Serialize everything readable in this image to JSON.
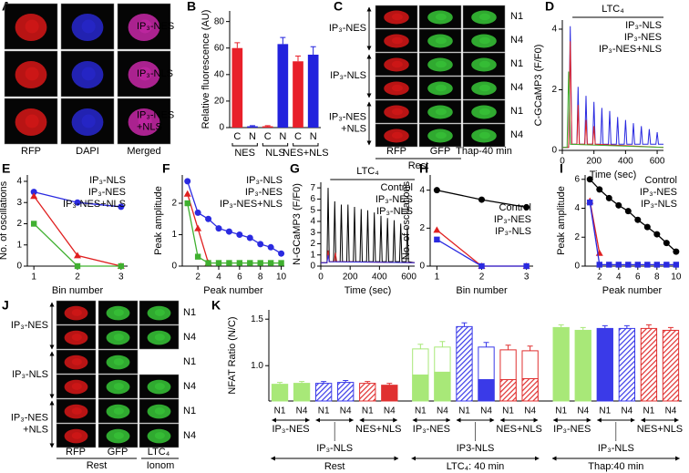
{
  "panel_labels": [
    "A",
    "B",
    "C",
    "D",
    "E",
    "F",
    "G",
    "H",
    "I",
    "J",
    "K"
  ],
  "image_panels": {
    "A": {
      "rows": [
        [
          "IP₃-NES"
        ],
        [
          "IP₃-NLS"
        ],
        [
          "IP₃-NES",
          "+NLS"
        ]
      ],
      "columns": [
        "RFP",
        "DAPI",
        "Merged"
      ]
    },
    "C": {
      "rows": [
        [
          "IP₃-NES"
        ],
        [
          "IP₃-NLS"
        ],
        [
          "IP₃-NES",
          "+NLS"
        ]
      ],
      "columns": [
        "RFP",
        "GFP",
        "Thap-40 min"
      ],
      "row_tags": [
        "N1",
        "N4",
        "N1",
        "N4",
        "N1",
        "N4"
      ],
      "footer": "Rest"
    },
    "J": {
      "rows": [
        [
          "IP₃-NES"
        ],
        [
          "IP₃-NLS"
        ],
        [
          "IP₃-NES",
          "+NLS"
        ]
      ],
      "columns": [
        "RFP",
        "GFP",
        "LTC₄"
      ],
      "row_tags": [
        "N1",
        "N4",
        "N1",
        "N4",
        "N1",
        "N4"
      ],
      "footer": "Rest",
      "footer2": "Ionom"
    }
  },
  "chart_data": [
    {
      "type": "bar",
      "ylabel": "Relative fluorescence (AU)",
      "categories": [
        "C",
        "N",
        "C",
        "N",
        "C",
        "N"
      ],
      "groups": [
        "NES",
        "NLS",
        "NES+NLS"
      ],
      "values": [
        60,
        1,
        1,
        63,
        50,
        55
      ],
      "errors": [
        4,
        0.5,
        0.5,
        5,
        4,
        6
      ],
      "colors": [
        "#e8202a",
        "#2222dd",
        "#e8202a",
        "#2222dd",
        "#e8202a",
        "#2222dd"
      ],
      "ylim": [
        0,
        88
      ],
      "yticks": [
        0,
        20,
        40,
        60,
        80
      ]
    },
    {
      "type": "line",
      "title": "LTC₄",
      "ylabel": "C-GCaMP3 (F/F0)",
      "xlabel": "Time (sec)",
      "xlim": [
        0,
        640
      ],
      "ylim": [
        0,
        4.3
      ],
      "xticks": [
        0,
        200,
        400,
        600
      ],
      "yticks": [
        0,
        2,
        4
      ],
      "legend_position": "upper right",
      "series": [
        {
          "name": "IP₃-NLS",
          "color": "#2a2ae0",
          "x": [
            0,
            40,
            50,
            60,
            92,
            100,
            108,
            142,
            150,
            158,
            192,
            200,
            208,
            242,
            250,
            258,
            292,
            300,
            308,
            342,
            350,
            358,
            392,
            400,
            408,
            442,
            450,
            458,
            492,
            500,
            508,
            542,
            550,
            558,
            592,
            600,
            608,
            640
          ],
          "values": [
            0.1,
            0.1,
            4.1,
            0.2,
            0.2,
            2.1,
            0.2,
            0.2,
            1.8,
            0.2,
            0.2,
            1.6,
            0.2,
            0.2,
            1.4,
            0.2,
            0.2,
            1.3,
            0.2,
            0.2,
            1.1,
            0.2,
            0.2,
            1.0,
            0.2,
            0.2,
            0.9,
            0.2,
            0.2,
            0.8,
            0.2,
            0.2,
            0.7,
            0.2,
            0.2,
            0.6,
            0.2,
            0.2
          ]
        },
        {
          "name": "IP₃-NES",
          "color": "#e02020",
          "x": [
            0,
            40,
            50,
            60,
            92,
            100,
            108,
            142,
            150,
            158,
            192,
            200,
            208,
            640
          ],
          "values": [
            0.1,
            0.1,
            3.6,
            0.2,
            0.2,
            1.5,
            0.2,
            0.2,
            1.0,
            0.2,
            0.2,
            0.8,
            0.2,
            0.1
          ]
        },
        {
          "name": "IP₃-NES+NLS",
          "color": "#40b030",
          "x": [
            0,
            30,
            40,
            50,
            640
          ],
          "values": [
            0.1,
            0.1,
            2.6,
            0.2,
            0.1
          ]
        }
      ]
    },
    {
      "type": "line",
      "markers": true,
      "xlabel": "Bin number",
      "ylabel": "No. of oscillations",
      "x": [
        1,
        2,
        3
      ],
      "xlim": [
        0.85,
        3.15
      ],
      "ylim": [
        0,
        4.3
      ],
      "xticks": [
        1,
        2,
        3
      ],
      "yticks": [
        0,
        1,
        2,
        3,
        4
      ],
      "legend_position": "upper right",
      "series": [
        {
          "name": "IP₃-NLS",
          "color": "#2a2ae0",
          "marker": "circle",
          "values": [
            3.5,
            3.0,
            2.8
          ]
        },
        {
          "name": "IP₃-NES",
          "color": "#e02020",
          "marker": "triangle",
          "values": [
            3.3,
            0.5,
            0
          ]
        },
        {
          "name": "IP₃-NES+NLS",
          "color": "#40b030",
          "marker": "square",
          "values": [
            2,
            0,
            0
          ]
        }
      ]
    },
    {
      "type": "line",
      "markers": true,
      "xlabel": "Peak number",
      "ylabel": "Peak amplitude",
      "x": [
        1,
        2,
        3,
        4,
        5,
        6,
        7,
        8,
        9,
        10
      ],
      "xlim": [
        0.5,
        10.3
      ],
      "ylim": [
        0,
        2.9
      ],
      "xticks": [
        2,
        4,
        6,
        8,
        10
      ],
      "yticks": [
        0,
        1,
        2
      ],
      "legend_position": "upper right",
      "series": [
        {
          "name": "IP₃-NLS",
          "color": "#2a2ae0",
          "marker": "circle",
          "values": [
            2.7,
            1.7,
            1.5,
            1.2,
            1.1,
            1.0,
            0.9,
            0.7,
            0.6,
            0.4
          ]
        },
        {
          "name": "IP₃-NES",
          "color": "#e02020",
          "marker": "triangle",
          "x": [
            1,
            2,
            3
          ],
          "values": [
            2.3,
            1.2,
            0.1
          ]
        },
        {
          "name": "IP₃-NES+NLS",
          "color": "#40b030",
          "marker": "square",
          "values": [
            2.0,
            0.3,
            0.1,
            0.1,
            0.1,
            0.1,
            0.1,
            0.1,
            0.1,
            0.1
          ]
        }
      ]
    },
    {
      "type": "line",
      "title": "LTC₄",
      "ylabel": "N-GCaMP3 (F/F0)",
      "xlabel": "Time (sec)",
      "xlim": [
        0,
        640
      ],
      "ylim": [
        0,
        7.5
      ],
      "xticks": [
        0,
        200,
        400,
        600
      ],
      "yticks": [
        0,
        1,
        2,
        3,
        4,
        5,
        6,
        7
      ],
      "legend_position": "upper right",
      "series": [
        {
          "name": "Control",
          "color": "#000000",
          "x": [
            0,
            42,
            50,
            58,
            87,
            95,
            103,
            132,
            140,
            148,
            177,
            185,
            193,
            222,
            230,
            238,
            267,
            275,
            283,
            312,
            320,
            328,
            357,
            365,
            373,
            402,
            410,
            418,
            447,
            455,
            463,
            492,
            500,
            508,
            537,
            545,
            553,
            582,
            590,
            598,
            640
          ],
          "values": [
            0.3,
            0.3,
            7.0,
            0.4,
            0.4,
            5.8,
            0.4,
            0.4,
            5.5,
            0.4,
            0.4,
            5.5,
            0.4,
            0.4,
            5.3,
            0.4,
            0.4,
            5.1,
            0.4,
            0.4,
            5.0,
            0.4,
            0.4,
            4.8,
            0.4,
            0.4,
            4.5,
            0.4,
            0.4,
            4.3,
            0.4,
            0.4,
            4.1,
            0.4,
            0.4,
            3.8,
            0.4,
            0.4,
            3.5,
            0.4,
            0.3
          ]
        },
        {
          "name": "IP₃-NES",
          "color": "#e02020",
          "x": [
            0,
            42,
            50,
            58,
            92,
            100,
            108,
            640
          ],
          "values": [
            0.3,
            0.3,
            1.4,
            0.4,
            0.4,
            1.2,
            0.4,
            0.3
          ]
        },
        {
          "name": "IP₃-NLS",
          "color": "#2a2ae0",
          "x": [
            0,
            42,
            50,
            58,
            640
          ],
          "values": [
            0.3,
            0.3,
            1.0,
            0.4,
            0.3
          ]
        }
      ]
    },
    {
      "type": "line",
      "markers": true,
      "xlabel": "Bin number",
      "ylabel": "No. of oscillations",
      "x": [
        1,
        2,
        3
      ],
      "xlim": [
        0.85,
        3.15
      ],
      "ylim": [
        0,
        4.8
      ],
      "xticks": [
        1,
        2,
        3
      ],
      "yticks": [
        0,
        2,
        4
      ],
      "legend_position": "center right",
      "series": [
        {
          "name": "Control",
          "color": "#000000",
          "marker": "circle",
          "values": [
            4.0,
            3.5,
            3.1
          ]
        },
        {
          "name": "IP₃-NES",
          "color": "#e02020",
          "marker": "triangle",
          "values": [
            1.9,
            0,
            0
          ]
        },
        {
          "name": "IP₃-NLS",
          "color": "#2a2ae0",
          "marker": "square",
          "values": [
            1.4,
            0,
            0
          ]
        }
      ]
    },
    {
      "type": "line",
      "markers": true,
      "xlabel": "Peak number",
      "ylabel": "Peak amplitude",
      "x": [
        1,
        2,
        3,
        4,
        5,
        6,
        7,
        8,
        9,
        10
      ],
      "xlim": [
        0.5,
        10.3
      ],
      "ylim": [
        0,
        6.3
      ],
      "xticks": [
        2,
        4,
        6,
        8,
        10
      ],
      "yticks": [
        0,
        2,
        4,
        6
      ],
      "legend_position": "upper right",
      "series": [
        {
          "name": "Control",
          "color": "#000000",
          "marker": "circle",
          "values": [
            6.0,
            5.3,
            4.7,
            4.2,
            3.8,
            3.2,
            2.7,
            2.2,
            1.6,
            1.0
          ]
        },
        {
          "name": "IP₃-NES",
          "color": "#e02020",
          "marker": "triangle",
          "x": [
            1,
            2
          ],
          "values": [
            4.5,
            0.9
          ]
        },
        {
          "name": "IP₃-NLS",
          "color": "#2a2ae0",
          "marker": "square",
          "values": [
            4.4,
            0.1,
            0.1,
            0.1,
            0.1,
            0.1,
            0.1,
            0.1,
            0.1,
            0.1
          ]
        }
      ]
    },
    {
      "type": "nfat",
      "ylabel": "NFAT Ratio (N/C)",
      "categories": [
        "N1",
        "N4",
        "N1",
        "N4",
        "N1",
        "N4",
        "N1",
        "N4",
        "N1",
        "N4",
        "N1",
        "N4",
        "N1",
        "N4",
        "N1",
        "N4",
        "N1",
        "N4"
      ],
      "values": [
        0.8,
        0.81,
        0.81,
        0.82,
        0.81,
        0.79,
        1.18,
        1.2,
        1.42,
        1.2,
        1.17,
        1.16,
        1.41,
        1.38,
        1.4,
        1.4,
        1.4,
        1.38
      ],
      "errors": [
        0.02,
        0.02,
        0.02,
        0.02,
        0.02,
        0.02,
        0.05,
        0.06,
        0.04,
        0.05,
        0.05,
        0.05,
        0.03,
        0.03,
        0.03,
        0.03,
        0.04,
        0.03
      ],
      "inner_values": [
        null,
        null,
        null,
        null,
        null,
        null,
        0.9,
        0.93,
        null,
        0.85,
        0.85,
        0.86,
        null,
        null,
        null,
        null,
        null,
        null
      ],
      "colors": [
        "#a8e878",
        "#a8e878",
        "#3a3ae8",
        "#3a3ae8",
        "#e03030",
        "#e03030",
        "#a8e878",
        "#a8e878",
        "#3a3ae8",
        "#3a3ae8",
        "#e03030",
        "#e03030",
        "#a8e878",
        "#a8e878",
        "#3a3ae8",
        "#3a3ae8",
        "#e03030",
        "#e03030"
      ],
      "styles": [
        "solid",
        "solid",
        "hatched",
        "hatched",
        "hatched",
        "solid",
        "open",
        "open",
        "hatched",
        "open",
        "open",
        "open",
        "solid",
        "solid",
        "solid",
        "hatched",
        "hatched",
        "hatched"
      ],
      "inner_styles": [
        null,
        null,
        null,
        null,
        null,
        null,
        "solid",
        "solid",
        null,
        "solid",
        "hatched",
        "hatched",
        null,
        null,
        null,
        null,
        null,
        null
      ],
      "group_labels": [
        [
          "IP₃-NES",
          "IP₃-NLS",
          "NES+NLS"
        ],
        [
          "IP₃-NES",
          "IP3-NLS",
          "NES+NLS"
        ],
        [
          "IP₃-NES",
          "IP₃-NLS",
          "NES+NLS"
        ]
      ],
      "group_colors": [
        "#e02020",
        "#2a2ae0",
        "#40b030"
      ],
      "conditions": [
        "Rest",
        "LTC₄: 40 min",
        "Thap:40 min"
      ],
      "ylim": [
        0.62,
        1.6
      ],
      "yticks": [
        {
          "value": 1,
          "label": "1.0"
        },
        1.5
      ]
    }
  ]
}
